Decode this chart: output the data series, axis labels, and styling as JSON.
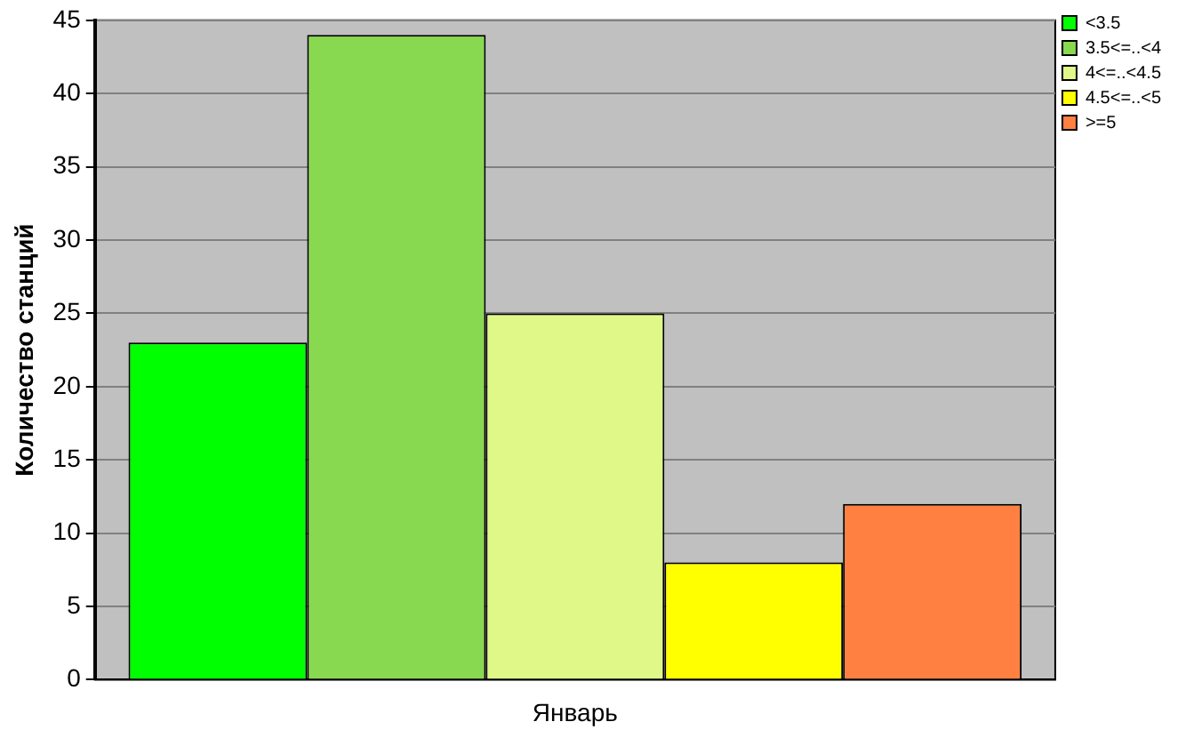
{
  "chart_data": {
    "type": "bar",
    "ylabel": "Количество станций",
    "categories": [
      "Январь"
    ],
    "series": [
      {
        "name": "<3.5",
        "color": "#00ff00",
        "values": [
          23
        ]
      },
      {
        "name": "3.5<=..<4",
        "color": "#88d850",
        "values": [
          44
        ]
      },
      {
        "name": "4<=..<4.5",
        "color": "#e0f888",
        "values": [
          25
        ]
      },
      {
        "name": "4.5<=..<5",
        "color": "#ffff00",
        "values": [
          8
        ]
      },
      {
        "name": ">=5",
        "color": "#ff8040",
        "values": [
          12
        ]
      }
    ],
    "ylim": [
      0,
      45
    ],
    "yticks": [
      0,
      5,
      10,
      15,
      20,
      25,
      30,
      35,
      40,
      45
    ],
    "grid": "y",
    "legend": "top right"
  }
}
